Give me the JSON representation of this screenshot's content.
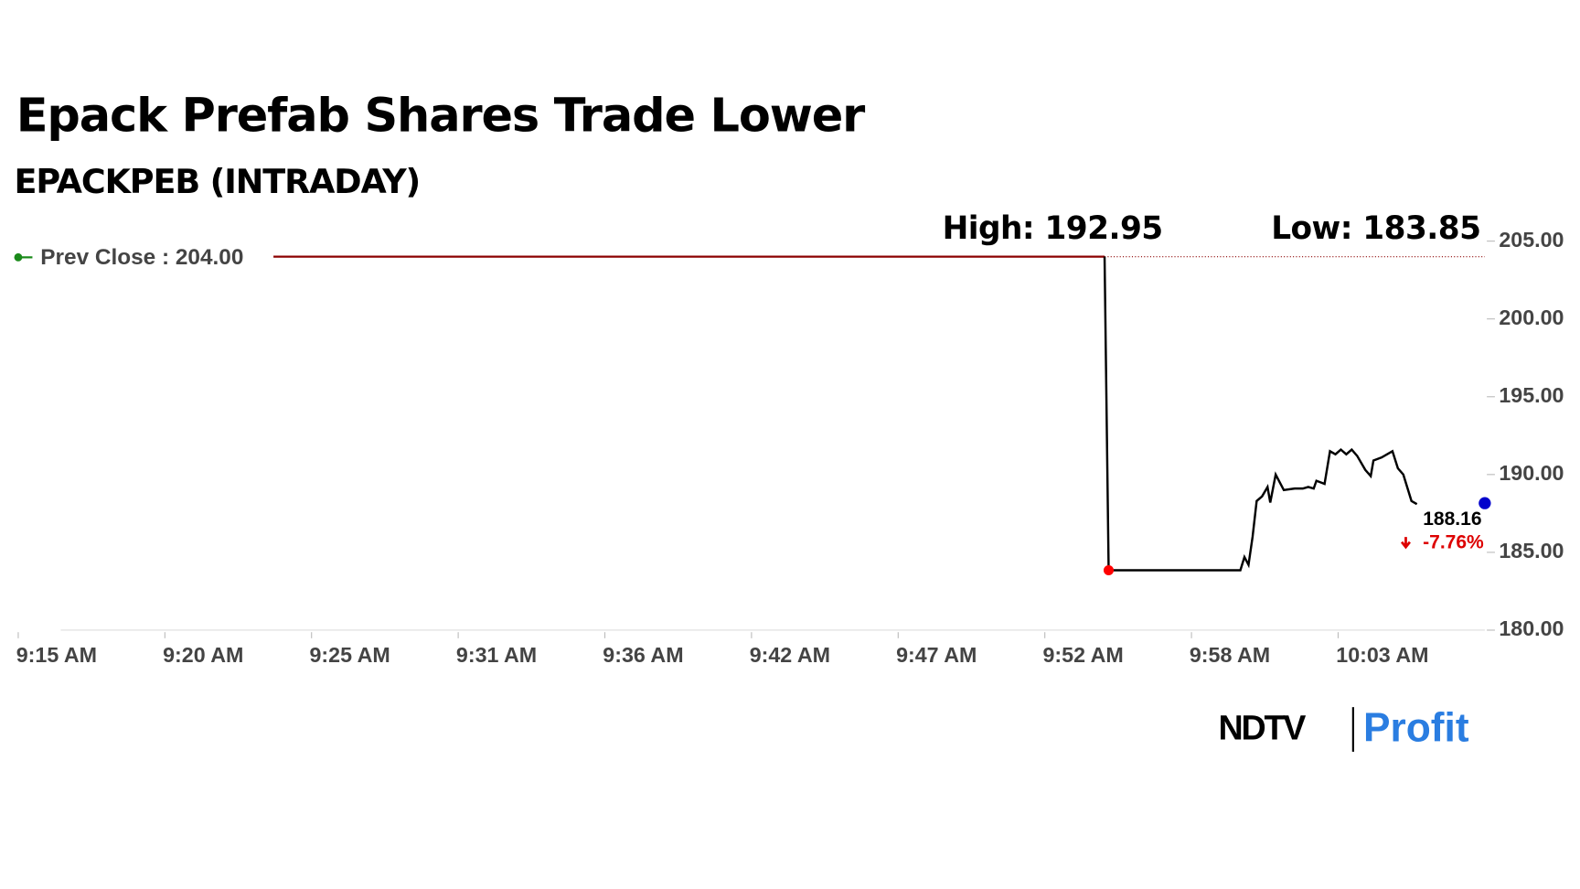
{
  "chart_data": {
    "type": "line",
    "title": "Epack Prefab Shares Trade Lower",
    "subtitle": "EPACKPEB (INTRADAY)",
    "high": {
      "value": 192.95,
      "label": "High: 192.95"
    },
    "low": {
      "value": 183.85,
      "label": "Low: 183.85"
    },
    "prev_close": {
      "value": 204,
      "label": "Prev Close : 204.00"
    },
    "last": {
      "value": 188.16,
      "label": "188.16",
      "change": "-7.76%"
    },
    "xlim": [
      555,
      609
    ],
    "xticks": [
      {
        "value": 555,
        "label": "9:15 AM"
      },
      {
        "value": 560.4,
        "label": "9:20 AM"
      },
      {
        "value": 565.8,
        "label": "9:25 AM"
      },
      {
        "value": 571.2,
        "label": "9:31 AM"
      },
      {
        "value": 576.6,
        "label": "9:36 AM"
      },
      {
        "value": 582,
        "label": "9:42 AM"
      },
      {
        "value": 587.4,
        "label": "9:47 AM"
      },
      {
        "value": 592.8,
        "label": "9:52 AM"
      },
      {
        "value": 598.2,
        "label": "9:58 AM"
      },
      {
        "value": 603.6,
        "label": "10:03 AM"
      }
    ],
    "ylim": [
      180,
      205
    ],
    "yticks": [
      {
        "value": 180,
        "label": "180.00"
      },
      {
        "value": 185,
        "label": "185.00"
      },
      {
        "value": 190,
        "label": "190.00"
      },
      {
        "value": 195,
        "label": "195.00"
      },
      {
        "value": 200,
        "label": "200.00"
      },
      {
        "value": 205,
        "label": "205.00"
      }
    ],
    "x": [
      595.0,
      595.15,
      600.0,
      600.15,
      600.3,
      600.45,
      600.6,
      600.8,
      601.0,
      601.1,
      601.3,
      601.6,
      602.0,
      602.3,
      602.5,
      602.7,
      602.8,
      603.1,
      603.3,
      603.5,
      603.7,
      603.9,
      604.1,
      604.3,
      604.6,
      604.8,
      604.9,
      605.2,
      605.6,
      605.8,
      606.0,
      606.3,
      606.5
    ],
    "series": [
      {
        "color": "#000000",
        "values": [
          204.0,
          183.85,
          183.85,
          184.7,
          184.2,
          186.0,
          188.3,
          188.6,
          189.2,
          188.2,
          190.0,
          189.0,
          189.1,
          189.1,
          189.2,
          189.1,
          189.6,
          189.4,
          191.5,
          191.3,
          191.6,
          191.3,
          191.6,
          191.2,
          190.3,
          189.9,
          190.9,
          191.1,
          191.5,
          190.4,
          190.0,
          188.3,
          188.1
        ]
      }
    ],
    "prev_close_color": "#8b0000",
    "low_marker_color": "#ff0000",
    "last_marker_color": "#0000cc"
  },
  "brand": {
    "name": "NDTV",
    "product": "Profit"
  }
}
